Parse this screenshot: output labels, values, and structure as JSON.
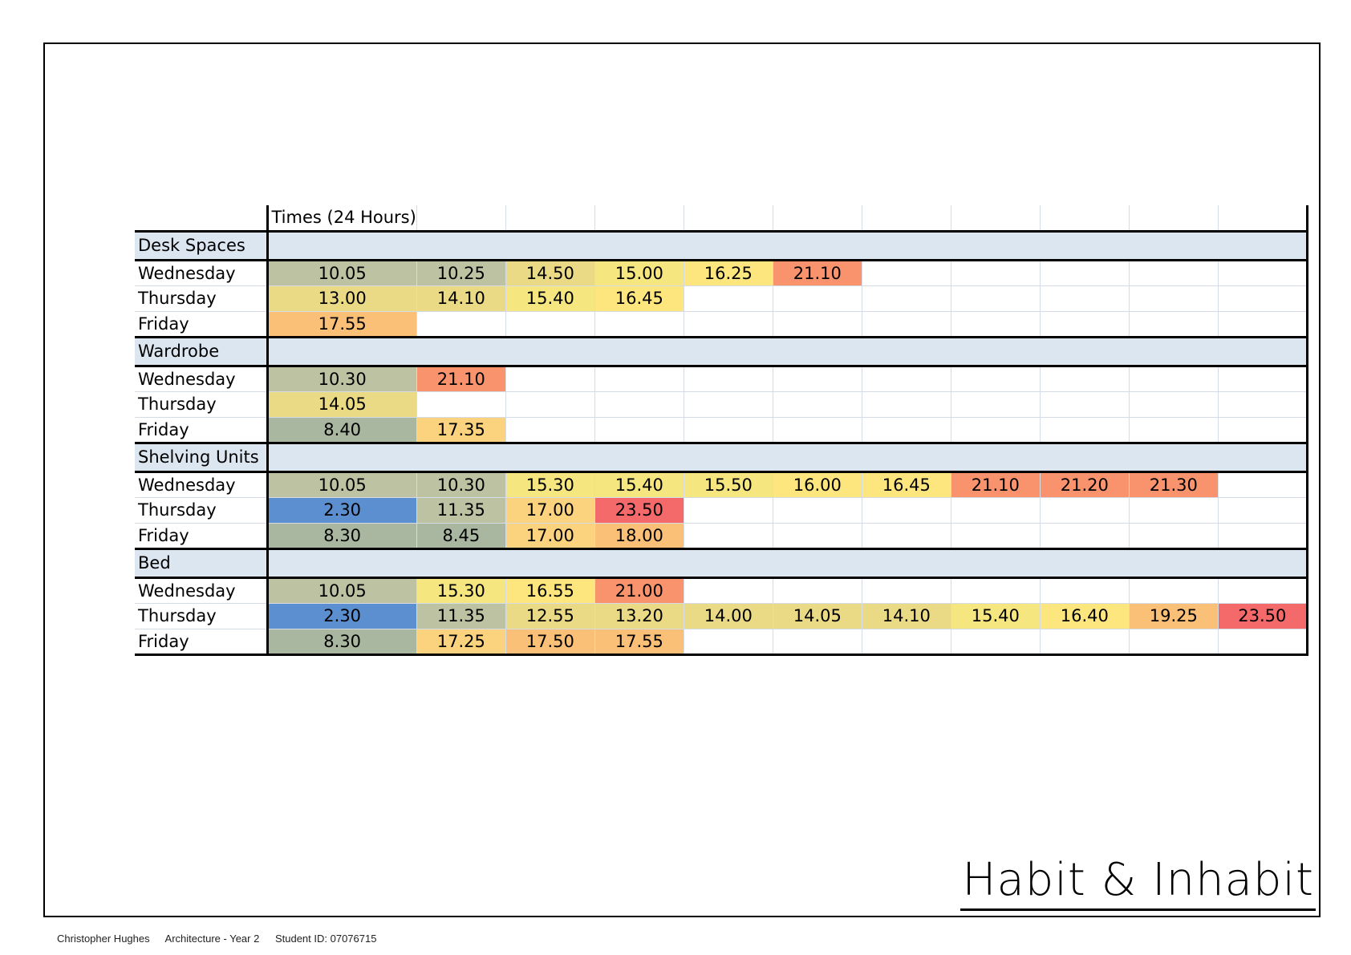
{
  "header": {
    "label": "Times  (24 Hours)"
  },
  "colors": {
    "section_fill": "#dce6f1",
    "palette": [
      "#5b8fd0",
      "#a9b7a0",
      "#bdc3a2",
      "#ead985",
      "#f5e680",
      "#fde67e",
      "#fbd27d",
      "#fbc078",
      "#f8936d",
      "#f46a6a"
    ]
  },
  "sections": [
    {
      "name": "Desk Spaces",
      "rows": [
        {
          "day": "Wednesday",
          "times": [
            "10.05",
            "10.25",
            "14.50",
            "15.00",
            "16.25",
            "21.10"
          ]
        },
        {
          "day": "Thursday",
          "times": [
            "13.00",
            "14.10",
            "15.40",
            "16.45"
          ]
        },
        {
          "day": "Friday",
          "times": [
            "17.55"
          ]
        }
      ]
    },
    {
      "name": "Wardrobe",
      "rows": [
        {
          "day": "Wednesday",
          "times": [
            "10.30",
            "21.10"
          ]
        },
        {
          "day": "Thursday",
          "times": [
            "14.05"
          ]
        },
        {
          "day": "Friday",
          "times": [
            "8.40",
            "17.35"
          ]
        }
      ]
    },
    {
      "name": "Shelving Units",
      "rows": [
        {
          "day": "Wednesday",
          "times": [
            "10.05",
            "10.30",
            "15.30",
            "15.40",
            "15.50",
            "16.00",
            "16.45",
            "21.10",
            "21.20",
            "21.30"
          ]
        },
        {
          "day": "Thursday",
          "times": [
            "2.30",
            "11.35",
            "17.00",
            "23.50"
          ]
        },
        {
          "day": "Friday",
          "times": [
            "8.30",
            "8.45",
            "17.00",
            "18.00"
          ]
        }
      ]
    },
    {
      "name": "Bed",
      "rows": [
        {
          "day": "Wednesday",
          "times": [
            "10.05",
            "15.30",
            "16.55",
            "21.00"
          ]
        },
        {
          "day": "Thursday",
          "times": [
            "2.30",
            "11.35",
            "12.55",
            "13.20",
            "14.00",
            "14.05",
            "14.10",
            "15.40",
            "16.40",
            "19.25",
            "23.50"
          ]
        },
        {
          "day": "Friday",
          "times": [
            "8.30",
            "17.25",
            "17.50",
            "17.55"
          ]
        }
      ]
    }
  ],
  "title": "Habit & Inhabit",
  "footer": {
    "name": "Christopher Hughes",
    "course": "Architecture - Year 2",
    "student_id": "Student ID: 07076715"
  }
}
